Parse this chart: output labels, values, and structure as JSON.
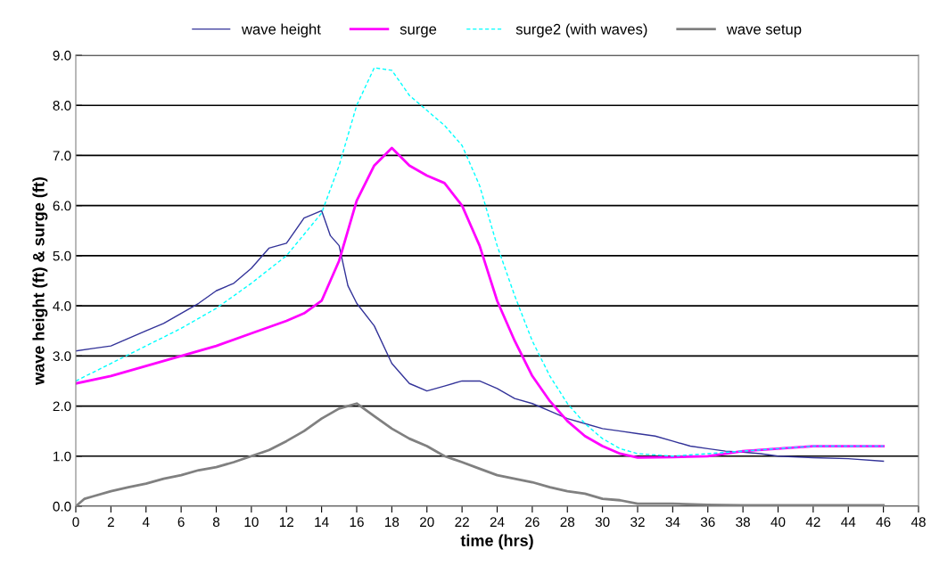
{
  "chart_data": {
    "type": "line",
    "xlabel": "time (hrs)",
    "ylabel": "wave height (ft) & surge (ft)",
    "xlim": [
      0,
      48
    ],
    "xticks": [
      0,
      2,
      4,
      6,
      8,
      10,
      12,
      14,
      16,
      18,
      20,
      22,
      24,
      26,
      28,
      30,
      32,
      34,
      36,
      38,
      40,
      42,
      44,
      46,
      48
    ],
    "ylim": [
      0,
      9
    ],
    "yticks": [
      {
        "value": 0,
        "label": "0.0"
      },
      {
        "value": 1,
        "label": "1.0"
      },
      {
        "value": 2,
        "label": "2.0"
      },
      {
        "value": 3,
        "label": "3.0"
      },
      {
        "value": 4,
        "label": "4.0"
      },
      {
        "value": 5,
        "label": "5.0"
      },
      {
        "value": 6,
        "label": "6.0"
      },
      {
        "value": 7,
        "label": "7.0"
      },
      {
        "value": 8,
        "label": "8.0"
      },
      {
        "value": 9,
        "label": "9.0"
      }
    ],
    "grid": "y",
    "legend": "top",
    "marker": "none",
    "series": [
      {
        "name": "wave height",
        "color": "#333399",
        "line_style": "solid",
        "x": [
          0,
          1,
          2,
          3,
          4,
          5,
          6,
          7,
          8,
          9,
          10,
          11,
          12,
          13,
          14,
          14.5,
          15,
          15.5,
          16,
          17,
          18,
          19,
          20,
          21,
          22,
          23,
          24,
          25,
          26,
          27,
          28,
          29,
          30,
          31,
          32,
          33,
          34,
          35,
          36,
          37,
          38,
          39,
          40,
          42,
          44,
          46
        ],
        "values": [
          3.1,
          3.15,
          3.2,
          3.35,
          3.5,
          3.65,
          3.85,
          4.05,
          4.3,
          4.45,
          4.75,
          5.15,
          5.25,
          5.75,
          5.9,
          5.4,
          5.2,
          4.4,
          4.05,
          3.6,
          2.85,
          2.45,
          2.3,
          2.4,
          2.5,
          2.5,
          2.35,
          2.15,
          2.05,
          1.9,
          1.75,
          1.65,
          1.55,
          1.5,
          1.45,
          1.4,
          1.3,
          1.2,
          1.15,
          1.1,
          1.08,
          1.05,
          1.0,
          0.97,
          0.95,
          0.9
        ]
      },
      {
        "name": "surge",
        "color": "#ff00ff",
        "line_style": "solid",
        "x": [
          0,
          2,
          4,
          6,
          8,
          10,
          12,
          13,
          14,
          15,
          16,
          17,
          18,
          19,
          20,
          21,
          22,
          23,
          24,
          25,
          26,
          27,
          28,
          29,
          30,
          31,
          32,
          34,
          36,
          38,
          40,
          42,
          46
        ],
        "values": [
          2.45,
          2.6,
          2.8,
          3.0,
          3.2,
          3.45,
          3.7,
          3.85,
          4.1,
          4.9,
          6.1,
          6.8,
          7.15,
          6.8,
          6.6,
          6.45,
          6.0,
          5.2,
          4.1,
          3.3,
          2.6,
          2.1,
          1.7,
          1.4,
          1.2,
          1.05,
          0.97,
          0.98,
          1.0,
          1.1,
          1.15,
          1.2,
          1.2
        ]
      },
      {
        "name": "surge2 (with waves)",
        "color": "#00ffff",
        "line_style": "dashed",
        "x": [
          0,
          2,
          4,
          6,
          8,
          10,
          12,
          14,
          15,
          16,
          17,
          18,
          19,
          20,
          21,
          22,
          23,
          24,
          25,
          26,
          27,
          28,
          29,
          30,
          31,
          32,
          34,
          36,
          38,
          40,
          42,
          46
        ],
        "values": [
          2.5,
          2.85,
          3.2,
          3.55,
          3.95,
          4.45,
          5.0,
          5.85,
          6.8,
          8.0,
          8.75,
          8.7,
          8.2,
          7.9,
          7.6,
          7.2,
          6.4,
          5.2,
          4.2,
          3.3,
          2.6,
          2.05,
          1.65,
          1.35,
          1.15,
          1.05,
          1.0,
          1.05,
          1.1,
          1.15,
          1.2,
          1.2
        ]
      },
      {
        "name": "wave setup",
        "color": "#808080",
        "line_style": "solid",
        "x": [
          0,
          0.5,
          1,
          2,
          3,
          4,
          5,
          6,
          7,
          8,
          9,
          10,
          11,
          12,
          13,
          14,
          15,
          16,
          17,
          18,
          19,
          20,
          21,
          22,
          23,
          24,
          25,
          26,
          27,
          28,
          29,
          30,
          31,
          32,
          34,
          36,
          38,
          40,
          42,
          44,
          46
        ],
        "values": [
          0.0,
          0.15,
          0.2,
          0.3,
          0.38,
          0.45,
          0.55,
          0.62,
          0.72,
          0.78,
          0.88,
          1.0,
          1.12,
          1.3,
          1.5,
          1.75,
          1.95,
          2.05,
          1.8,
          1.55,
          1.35,
          1.2,
          1.0,
          0.88,
          0.75,
          0.62,
          0.55,
          0.48,
          0.38,
          0.3,
          0.25,
          0.15,
          0.12,
          0.05,
          0.05,
          0.03,
          0.02,
          0.02,
          0.02,
          0.02,
          0.02
        ]
      }
    ]
  }
}
